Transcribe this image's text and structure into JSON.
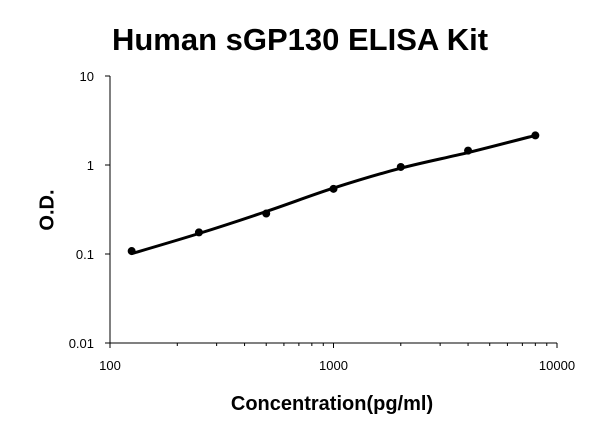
{
  "chart_data": {
    "type": "scatter",
    "title": "Human sGP130 ELISA Kit",
    "xlabel": "Concentration(pg/ml)",
    "ylabel": "O.D.",
    "x_scale": "log",
    "y_scale": "log",
    "xlim": [
      100,
      10000
    ],
    "ylim": [
      0.01,
      10
    ],
    "x_tick_labels": [
      "100",
      "1000",
      "10000"
    ],
    "y_tick_labels": [
      "0.01",
      "0.1",
      "1",
      "10"
    ],
    "grid": false,
    "legend": "none",
    "series": [
      {
        "x": [
          125,
          250,
          500,
          1000,
          2000,
          4000,
          8000
        ],
        "y": [
          0.108,
          0.175,
          0.285,
          0.54,
          0.95,
          1.45,
          2.15
        ]
      }
    ],
    "fit_curve": {
      "x": [
        125,
        250,
        500,
        1000,
        2000,
        4000,
        8000
      ],
      "y": [
        0.101,
        0.17,
        0.3,
        0.55,
        0.92,
        1.38,
        2.15
      ]
    },
    "colors": {
      "marks": "#000000",
      "axis": "#000000"
    }
  }
}
